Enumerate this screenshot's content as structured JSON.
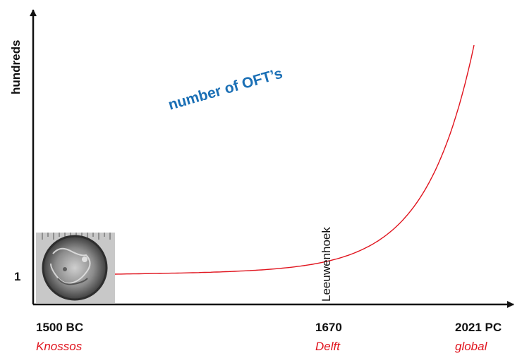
{
  "chart_data": {
    "type": "line",
    "ylabel": "hundreds",
    "y_tick_label": "1",
    "series_label": "number of OFT’s",
    "x_points": [
      {
        "label": "1500 BC",
        "place": "Knossos"
      },
      {
        "label": "1670",
        "place": "Delft"
      },
      {
        "label": "2021 PC",
        "place": "global"
      }
    ],
    "annotations": [
      {
        "text": "Leeuwenhoek",
        "x": "1670"
      }
    ],
    "curve": {
      "shape": "exponential",
      "start_value": 1
    },
    "image": {
      "description": "photo of a round ancient optical lens over a ruler"
    },
    "colors": {
      "curve": "#e0141e",
      "axis": "#111111",
      "series_label": "#1a6fb5",
      "place_label": "#e0141e"
    }
  }
}
